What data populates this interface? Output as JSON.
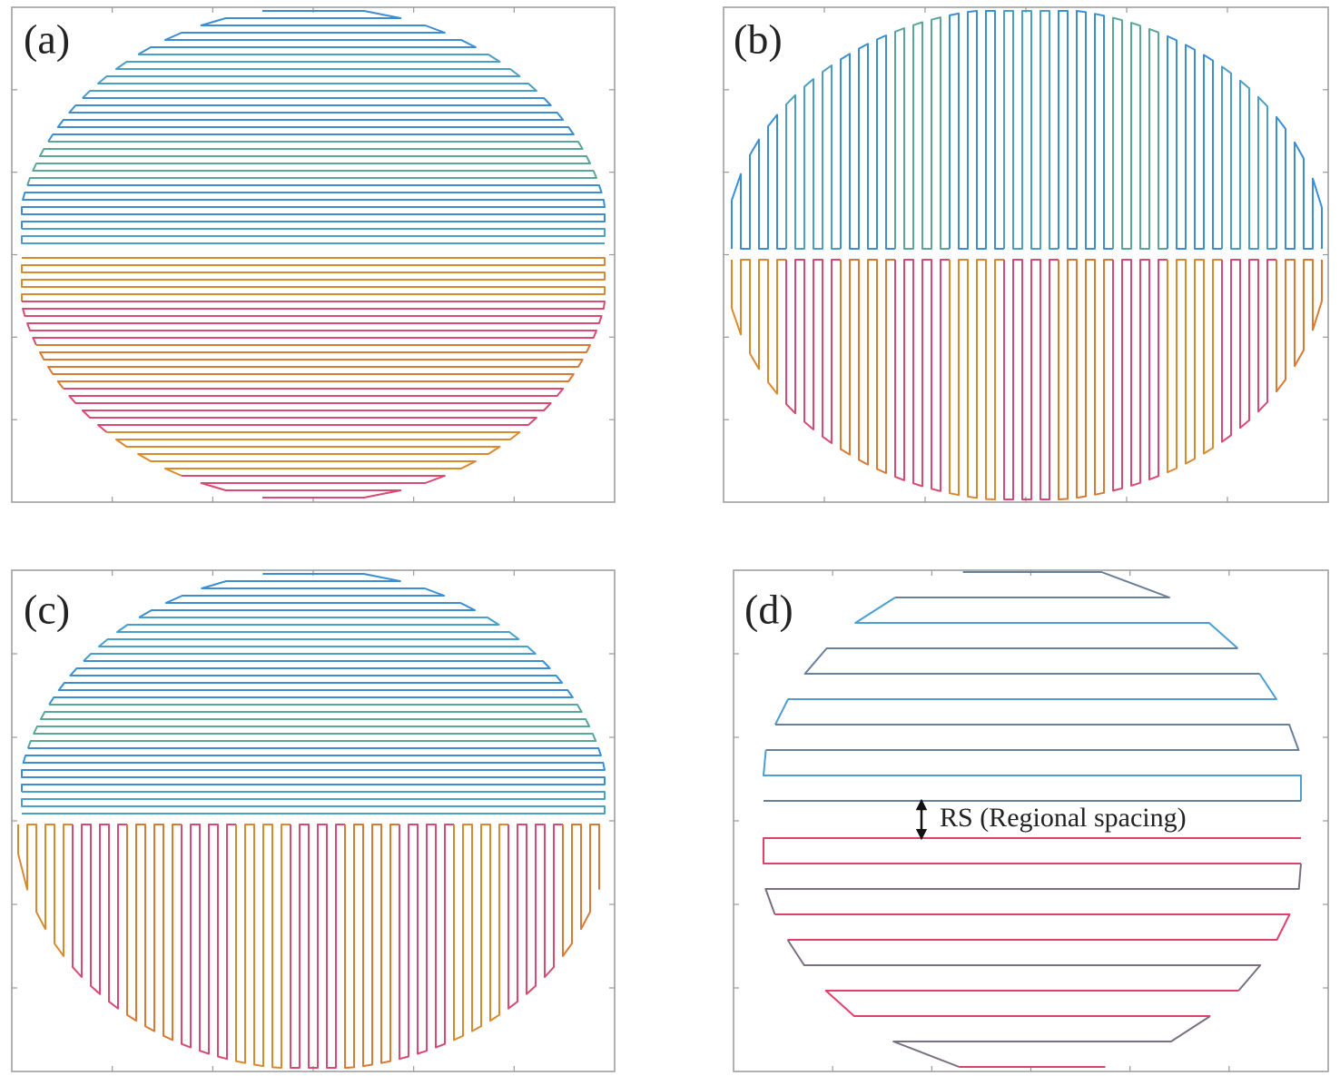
{
  "panels": [
    {
      "label": "(a)"
    },
    {
      "label": "(b)"
    },
    {
      "label": "(c)"
    },
    {
      "label": "(d)"
    }
  ],
  "annotation": "RS (Regional spacing)"
}
